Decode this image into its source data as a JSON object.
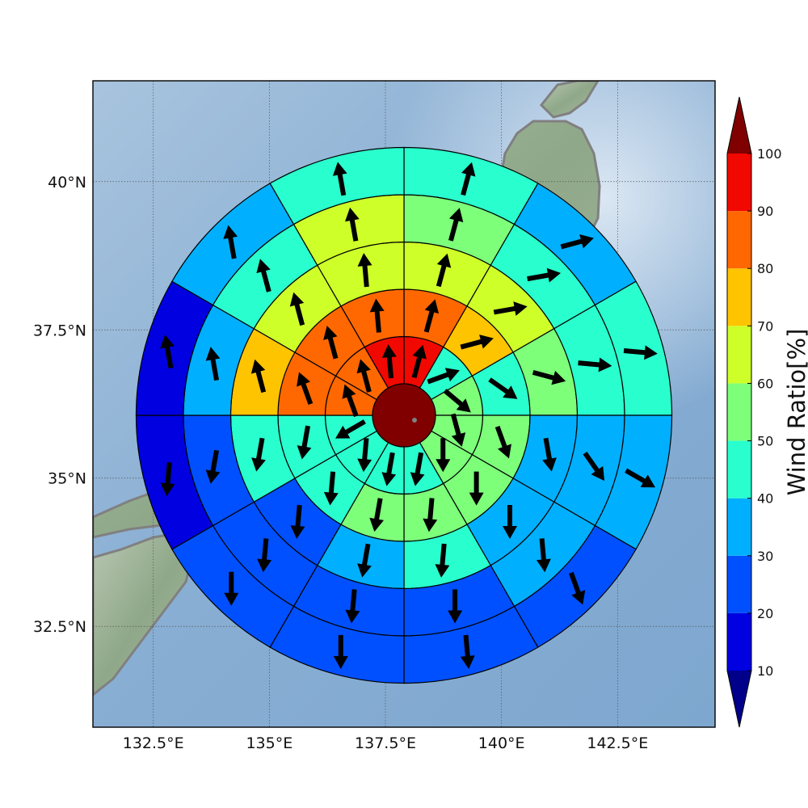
{
  "map": {
    "lon_range": [
      131.2,
      144.6
    ],
    "lat_range": [
      30.8,
      41.7
    ],
    "lon_ticks": [
      {
        "value": 132.5,
        "label": "132.5°E"
      },
      {
        "value": 135.0,
        "label": "135°E"
      },
      {
        "value": 137.5,
        "label": "137.5°E"
      },
      {
        "value": 140.0,
        "label": "140°E"
      },
      {
        "value": 142.5,
        "label": "142.5°E"
      }
    ],
    "lat_ticks": [
      {
        "value": 40.0,
        "label": "40°N"
      },
      {
        "value": 37.5,
        "label": "37.5°N"
      },
      {
        "value": 35.0,
        "label": "35°N"
      },
      {
        "value": 32.5,
        "label": "32.5°N"
      }
    ],
    "gridlines": true,
    "basemap": "shaded-relief",
    "coastline_color": "#808080",
    "ocean_color": "#8fb3d6"
  },
  "polar_grid": {
    "center": {
      "lon": 137.85,
      "lat": 36.15
    },
    "ring_count": 5,
    "sector_count": 12,
    "sector_order": "clockwise-from-north",
    "center_value_color": "#800000",
    "rings": [
      {
        "ring": 1,
        "ratios": [
          93,
          45,
          55,
          55,
          55,
          45,
          45,
          45,
          45,
          85,
          85,
          93
        ],
        "arrow_deg": [
          15,
          70,
          130,
          165,
          180,
          190,
          190,
          185,
          240,
          340,
          345,
          355
        ]
      },
      {
        "ring": 2,
        "ratios": [
          85,
          75,
          45,
          55,
          55,
          55,
          55,
          45,
          45,
          85,
          85,
          85
        ],
        "arrow_deg": [
          15,
          75,
          125,
          160,
          180,
          185,
          190,
          185,
          190,
          340,
          345,
          355
        ]
      },
      {
        "ring": 3,
        "ratios": [
          65,
          65,
          55,
          35,
          35,
          45,
          35,
          25,
          45,
          75,
          65,
          65
        ],
        "arrow_deg": [
          15,
          80,
          105,
          170,
          180,
          185,
          190,
          185,
          190,
          345,
          345,
          355
        ]
      },
      {
        "ring": 4,
        "ratios": [
          55,
          45,
          45,
          35,
          35,
          25,
          25,
          25,
          25,
          35,
          45,
          65
        ],
        "arrow_deg": [
          15,
          80,
          95,
          145,
          175,
          180,
          185,
          185,
          190,
          350,
          345,
          350
        ]
      },
      {
        "ring": 5,
        "ratios": [
          45,
          35,
          45,
          35,
          25,
          25,
          25,
          25,
          15,
          15,
          35,
          45
        ],
        "arrow_deg": [
          15,
          75,
          95,
          120,
          160,
          175,
          180,
          180,
          185,
          350,
          350,
          350
        ]
      }
    ]
  },
  "colorbar": {
    "title": "Wind Ratio[%]",
    "ticks": [
      "10",
      "20",
      "30",
      "40",
      "50",
      "60",
      "70",
      "80",
      "90",
      "100"
    ],
    "bounds": [
      10,
      20,
      30,
      40,
      50,
      60,
      70,
      80,
      90,
      100
    ],
    "under_color": "#00008b",
    "over_color": "#800000",
    "colors": [
      "#0000e0",
      "#0050ff",
      "#00b0ff",
      "#29ffce",
      "#7dff7a",
      "#ceff29",
      "#ffc400",
      "#ff6800",
      "#f10800"
    ]
  }
}
